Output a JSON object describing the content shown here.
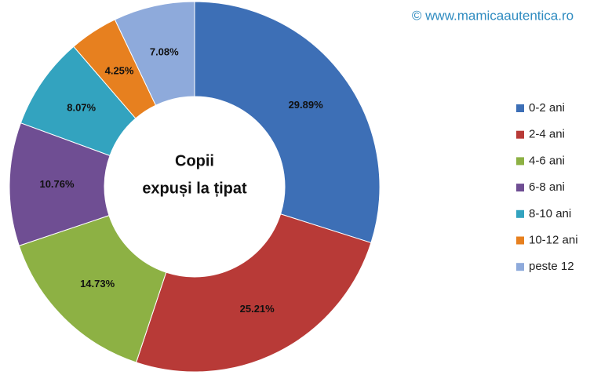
{
  "chart_data": {
    "type": "donut",
    "watermark": "© www.mamicaautentica.ro",
    "center_label": [
      "Copii",
      "expuși la țipat"
    ],
    "categories": [
      "0-2 ani",
      "2-4 ani",
      "4-6 ani",
      "6-8 ani",
      "8-10 ani",
      "10-12 ani",
      "peste 12"
    ],
    "values": [
      29.89,
      25.21,
      14.73,
      10.76,
      8.07,
      4.25,
      7.08
    ],
    "value_labels": [
      "29.89%",
      "25.21%",
      "14.73%",
      "10.76%",
      "8.07%",
      "4.25%",
      "7.08%"
    ],
    "colors": [
      "#3d6fb6",
      "#b83a37",
      "#8db144",
      "#6f4e93",
      "#33a3bf",
      "#e7801f",
      "#8eaadb"
    ],
    "legend": "right"
  }
}
